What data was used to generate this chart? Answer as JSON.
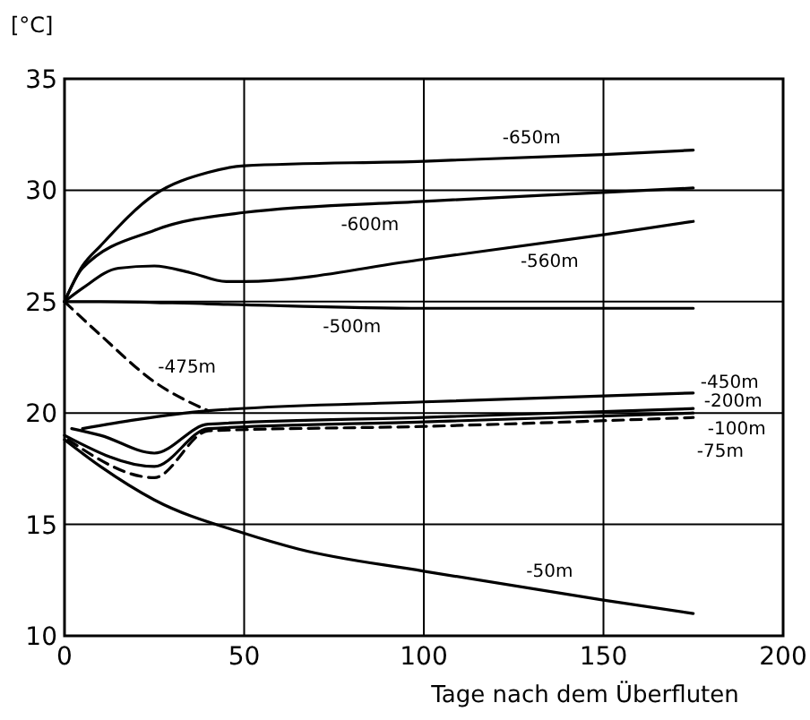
{
  "chart_data": {
    "type": "line",
    "xlabel": "Tage nach dem Überfluten",
    "ylabel": "[°C]",
    "xlim": [
      0,
      200
    ],
    "ylim": [
      10,
      35
    ],
    "xticks": [
      0,
      50,
      100,
      150,
      200
    ],
    "yticks": [
      10,
      15,
      20,
      25,
      30,
      35
    ],
    "grid": true,
    "marker": "none",
    "line_style": "solid",
    "series": [
      {
        "name": "-650m",
        "color": "#000000",
        "x": [
          0,
          5,
          10,
          25,
          40,
          50,
          100,
          150,
          175
        ],
        "values": [
          25,
          26.6,
          27.5,
          29.8,
          30.8,
          31.1,
          31.3,
          31.6,
          31.8
        ]
      },
      {
        "name": "-600m",
        "color": "#000000",
        "x": [
          0,
          5,
          25,
          50,
          100,
          150,
          175
        ],
        "values": [
          25,
          26.5,
          28.2,
          29,
          29.5,
          29.9,
          30.1
        ]
      },
      {
        "name": "-560m",
        "color": "#000000",
        "x": [
          0,
          5,
          15,
          25,
          35,
          45,
          50,
          100,
          150,
          175
        ],
        "values": [
          25,
          25.6,
          26.5,
          26.6,
          26.3,
          25.9,
          25.9,
          26.9,
          28,
          28.6
        ]
      },
      {
        "name": "-500m",
        "color": "#000000",
        "x": [
          0,
          10,
          40,
          100,
          175
        ],
        "values": [
          25,
          25,
          24.9,
          24.7,
          24.7
        ]
      },
      {
        "name": "-475m",
        "color": "#000000",
        "line_style": "dashed",
        "x": [
          0,
          10,
          25,
          40
        ],
        "values": [
          25,
          23.5,
          21.4,
          20.1
        ]
      },
      {
        "name": "-450m",
        "color": "#000000",
        "x": [
          5,
          20,
          40,
          100,
          175
        ],
        "values": [
          19.3,
          19.7,
          20.1,
          20.5,
          20.9
        ]
      },
      {
        "name": "-200m",
        "color": "#000000",
        "x": [
          2,
          10,
          25,
          40,
          100,
          175
        ],
        "values": [
          19.3,
          19,
          18.2,
          19.5,
          19.8,
          20.2
        ]
      },
      {
        "name": "-100m",
        "color": "#000000",
        "x": [
          0,
          25,
          40,
          100,
          175
        ],
        "values": [
          19,
          17.6,
          19.3,
          19.6,
          20
        ]
      },
      {
        "name": "-75m",
        "color": "#000000",
        "line_style": "dashed",
        "x": [
          1,
          25,
          40,
          100,
          175
        ],
        "values": [
          18.8,
          17.1,
          19.2,
          19.4,
          19.8
        ]
      },
      {
        "name": "-50m",
        "color": "#000000",
        "x": [
          0,
          10,
          25,
          50,
          65,
          100,
          150,
          175
        ],
        "values": [
          18.8,
          17.6,
          16.1,
          14.6,
          13.9,
          12.9,
          11.6,
          11
        ]
      }
    ]
  }
}
